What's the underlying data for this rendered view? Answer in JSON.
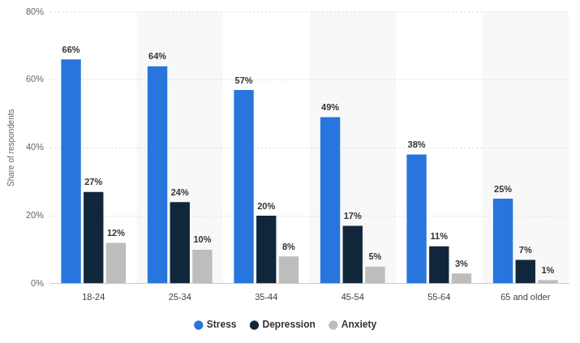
{
  "chart_data": {
    "type": "bar",
    "y_label": "Share of respondents",
    "categories": [
      "18-24",
      "25-34",
      "35-44",
      "45-54",
      "55-64",
      "65 and older"
    ],
    "series": [
      {
        "name": "Stress",
        "color": "#2876dd",
        "values": [
          66,
          64,
          57,
          49,
          38,
          25
        ],
        "value_labels": [
          "66%",
          "64%",
          "57%",
          "49%",
          "38%",
          "25%"
        ]
      },
      {
        "name": "Depression",
        "color": "#10263b",
        "values": [
          27,
          24,
          20,
          17,
          11,
          7
        ],
        "value_labels": [
          "27%",
          "24%",
          "20%",
          "17%",
          "11%",
          "7%"
        ]
      },
      {
        "name": "Anxiety",
        "color": "#bdbdbd",
        "values": [
          12,
          10,
          8,
          5,
          3,
          1
        ],
        "value_labels": [
          "12%",
          "10%",
          "8%",
          "5%",
          "3%",
          "1%"
        ]
      }
    ],
    "ylim": [
      0,
      80
    ],
    "yticks": [
      {
        "value": 0,
        "label": "0%"
      },
      {
        "value": 20,
        "label": "20%"
      },
      {
        "value": 40,
        "label": "40%"
      },
      {
        "value": 60,
        "label": "60%"
      },
      {
        "value": 80,
        "label": "80%"
      }
    ],
    "grid": true,
    "legend": "bottom",
    "data_labels": true
  }
}
